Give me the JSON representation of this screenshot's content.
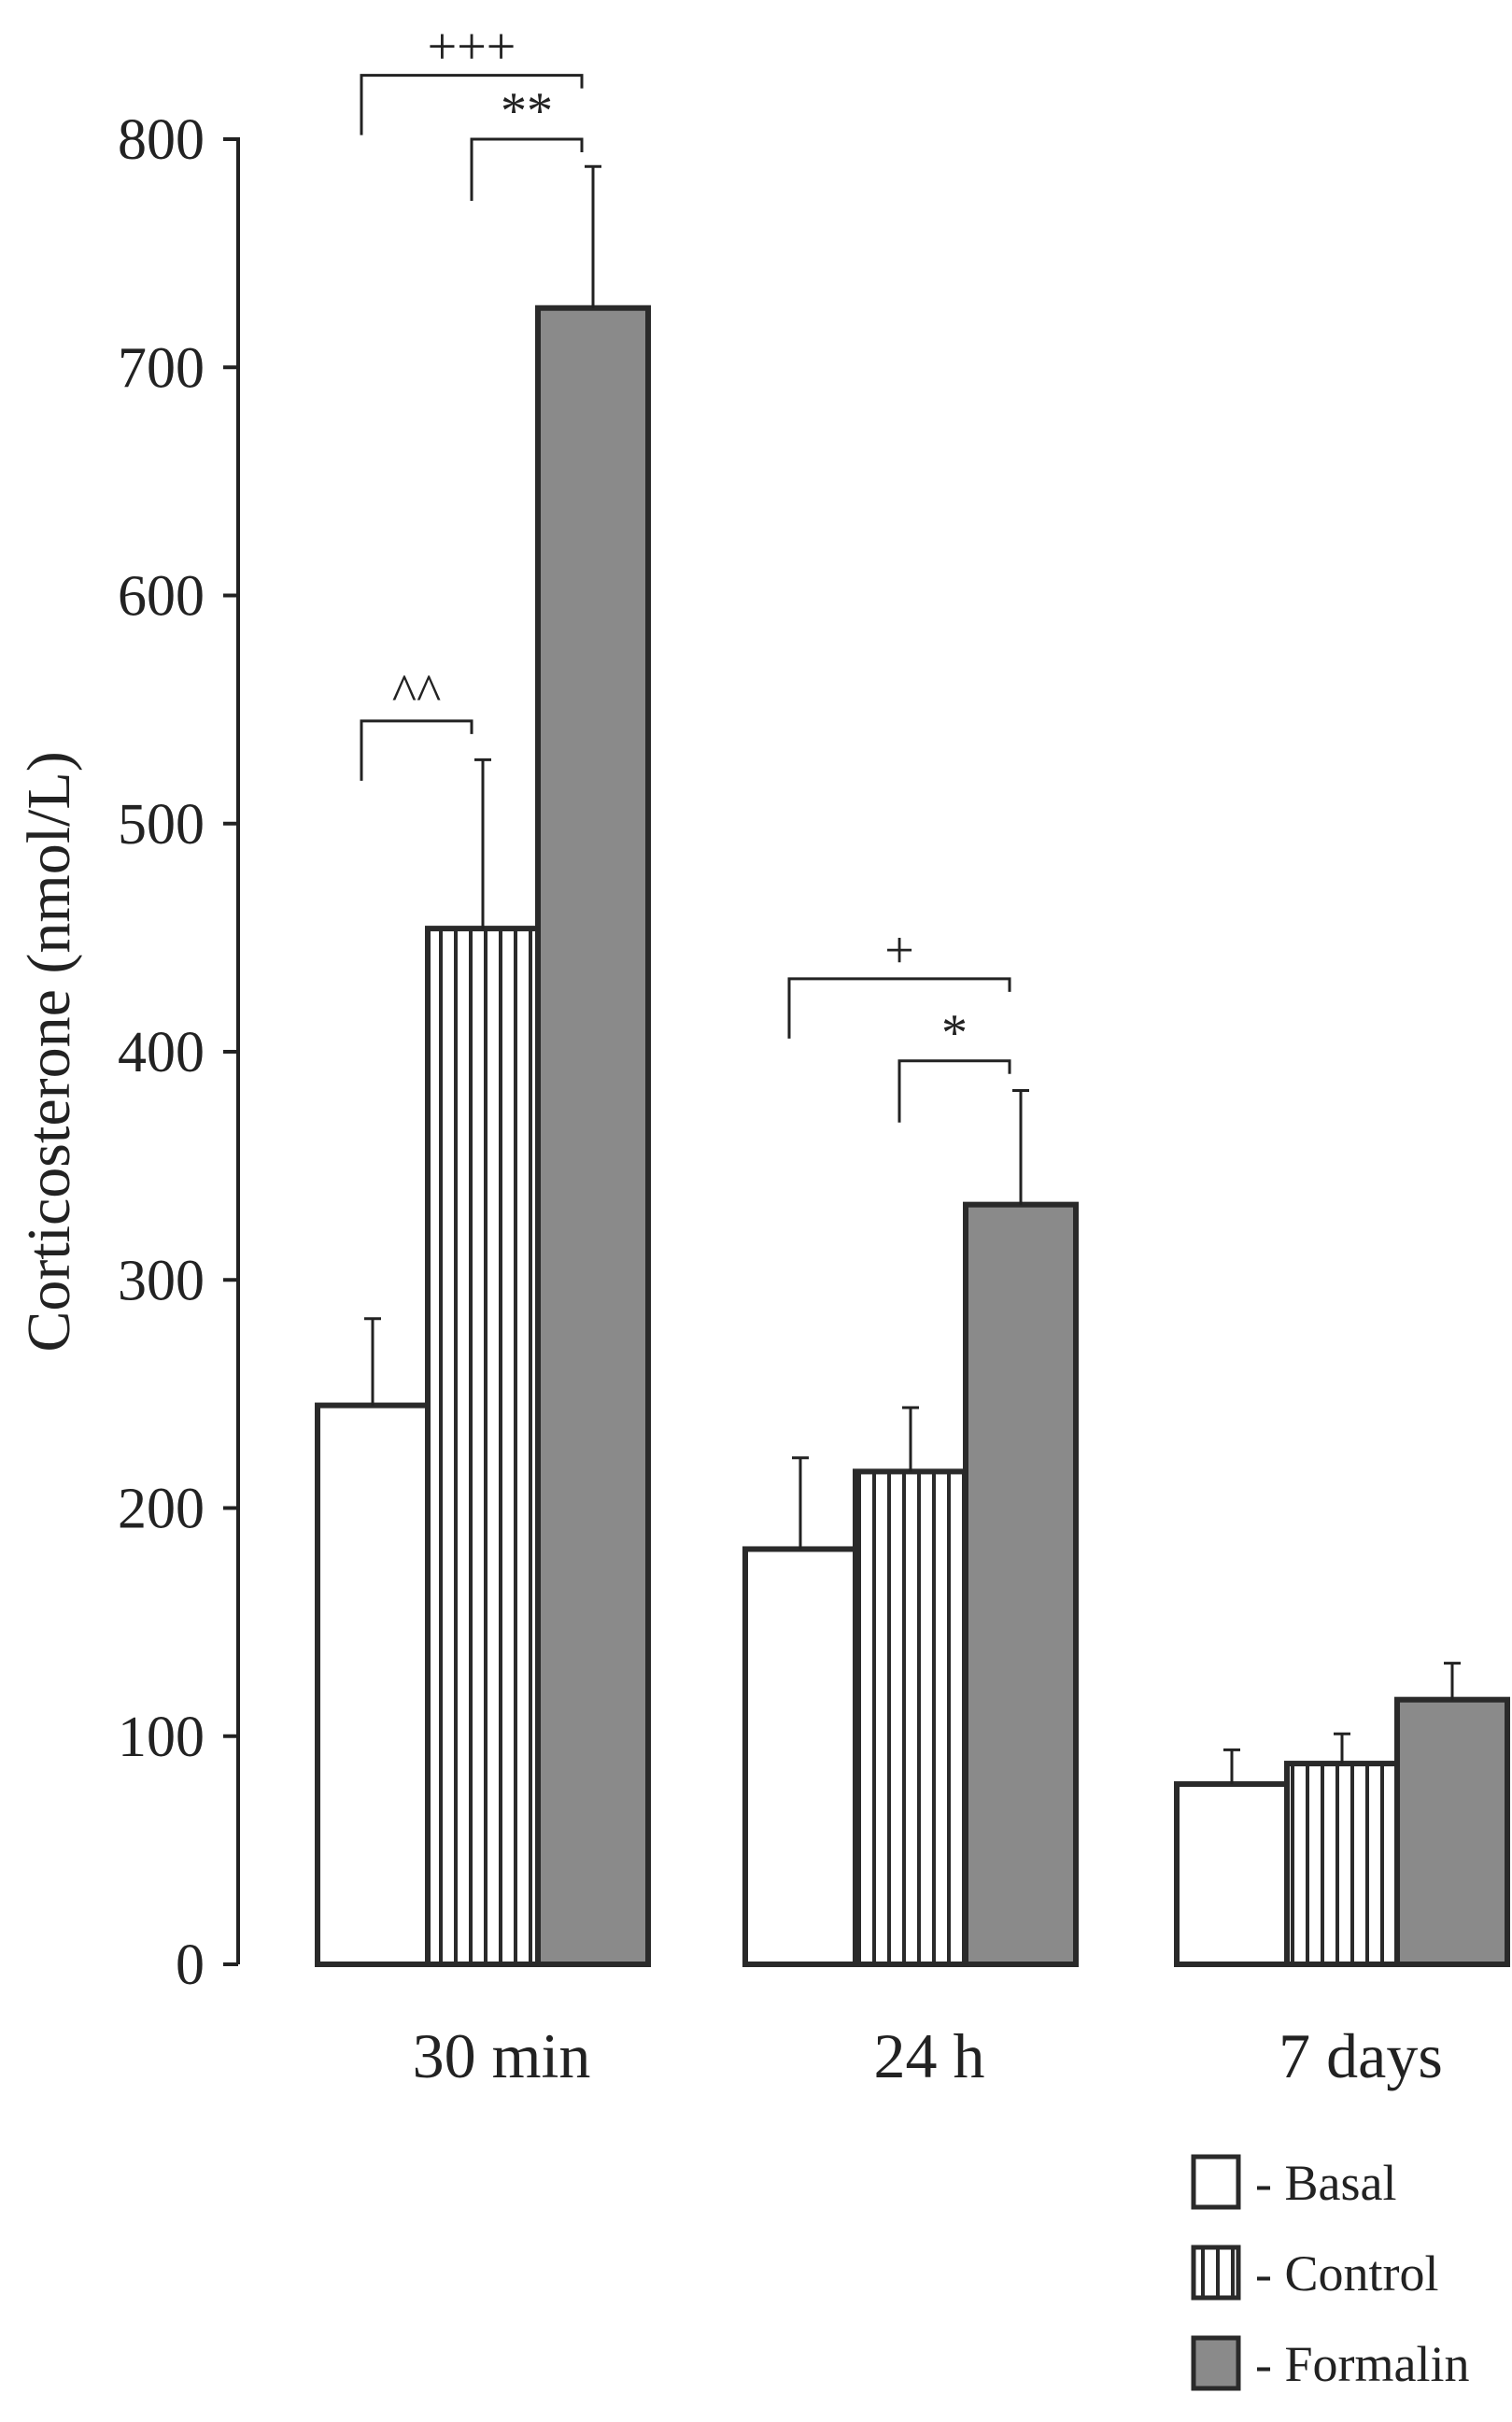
{
  "chart_data": {
    "type": "bar",
    "title": "",
    "xlabel": "",
    "ylabel": "Corticosterone (nmol/L)",
    "ylim": [
      0,
      800
    ],
    "yticks": [
      0,
      100,
      200,
      300,
      400,
      500,
      600,
      700,
      800
    ],
    "grid": false,
    "legend_position": "bottom-right",
    "categories": [
      "30 min",
      "24 h",
      "7 days"
    ],
    "series": [
      {
        "name": "Basal",
        "legend_label": "- Basal",
        "pattern": "white",
        "values": [
          245,
          182,
          79
        ],
        "errors": [
          38,
          40,
          15
        ]
      },
      {
        "name": "Control",
        "legend_label": "- Control",
        "pattern": "vertical-stripes",
        "values": [
          454,
          216,
          88
        ],
        "errors": [
          74,
          28,
          13
        ]
      },
      {
        "name": "Formalin",
        "legend_label": "- Formalin",
        "pattern": "gray",
        "values": [
          726,
          333,
          116
        ],
        "errors": [
          62,
          50,
          16
        ]
      }
    ],
    "annotations": [
      {
        "text": "^^",
        "category": 0,
        "from_series": 0,
        "to_series": 1,
        "y": 545
      },
      {
        "text": "+++",
        "category": 0,
        "from_series": 0,
        "to_series": 2,
        "y": 828
      },
      {
        "text": "**",
        "category": 0,
        "from_series": 1,
        "to_series": 2,
        "y": 800
      },
      {
        "text": "+",
        "category": 1,
        "from_series": 0,
        "to_series": 2,
        "y": 432
      },
      {
        "text": "*",
        "category": 1,
        "from_series": 1,
        "to_series": 2,
        "y": 396
      }
    ],
    "colors": {
      "axis": "#222222",
      "bar_outline": "#2a2a2a",
      "formalin_fill": "#8a8a8a",
      "basal_fill": "#ffffff",
      "stripe": "#2a2a2a"
    }
  }
}
